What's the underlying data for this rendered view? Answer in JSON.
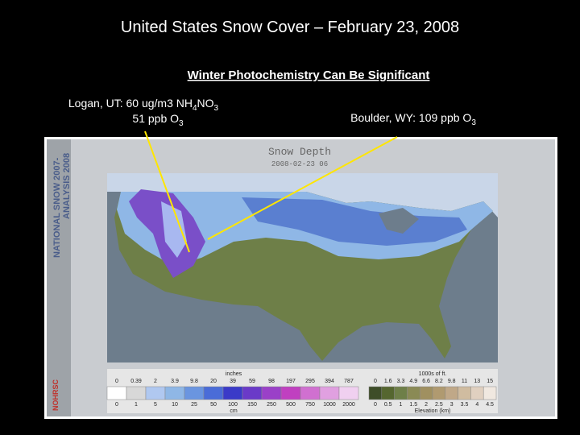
{
  "title": "United States Snow Cover – February 23, 2008",
  "subtitle": "Winter Photochemistry Can Be Significant",
  "annotations": [
    {
      "lines": [
        [
          "Logan, UT: 60 ug/m3 NH",
          "4",
          "NO",
          "3"
        ],
        [
          "51 ppb O",
          "3"
        ]
      ]
    },
    {
      "lines": [
        [
          "Boulder, WY: 109 ppb O",
          "3"
        ]
      ]
    }
  ],
  "map": {
    "title": "Snow Depth",
    "date": "2008-02-23 06",
    "side_label": [
      "NATIONAL SNOW 2007-",
      "ANALYSIS 2008"
    ],
    "logo": "NOHRSC",
    "legend": {
      "depth_unit_top": "inches",
      "depth_top": [
        "0",
        "0.39",
        "2",
        "3.9",
        "9.8",
        "20",
        "39",
        "59",
        "98",
        "197",
        "295",
        "394",
        "787"
      ],
      "depth_bottom": [
        "0",
        "1",
        "5",
        "10",
        "25",
        "50",
        "100",
        "150",
        "250",
        "500",
        "750",
        "1000",
        "2000"
      ],
      "depth_unit_bottom": "cm",
      "elev_unit_top": "1000s of ft.",
      "elev_top": [
        "0",
        "1.6",
        "3.3",
        "4.9",
        "6.6",
        "8.2",
        "9.8",
        "11",
        "13",
        "15"
      ],
      "elev_bottom": [
        "0",
        "0.5",
        "1",
        "1.5",
        "2",
        "2.5",
        "3",
        "3.5",
        "4",
        "4.5"
      ],
      "elev_unit_bottom": "Elevation (km)"
    }
  }
}
